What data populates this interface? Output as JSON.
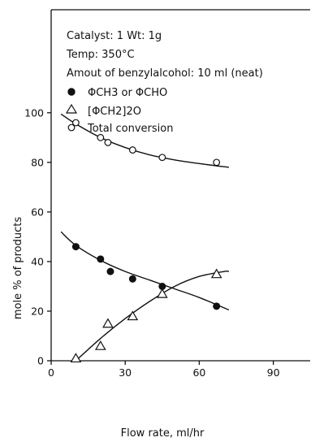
{
  "chart_data": {
    "type": "scatter",
    "title": "",
    "xlabel": "Flow rate, ml/hr",
    "ylabel": "mole % of products",
    "xlim": [
      0,
      105
    ],
    "ylim": [
      0,
      108
    ],
    "x_ticks": [
      0,
      30,
      60,
      90
    ],
    "y_ticks": [
      0,
      20,
      40,
      60,
      80,
      100
    ],
    "annotation_lines": [
      "Catalyst: 1   Wt: 1g",
      "Temp: 350°C",
      "Amout of benzylalcohol: 10 ml (neat)"
    ],
    "legend": [
      {
        "marker": "filled-circle",
        "text": "ΦCH3  or  ΦCHO"
      },
      {
        "marker": "open-triangle",
        "text": "[ΦCH2]2O"
      },
      {
        "marker": "open-circle",
        "text": "Total conversion"
      }
    ],
    "series": [
      {
        "name": "ΦCH3 or ΦCHO",
        "marker": "filled-circle",
        "x": [
          10,
          20,
          24,
          33,
          45,
          67
        ],
        "y": [
          46,
          41,
          36,
          33,
          30,
          22
        ],
        "curve": {
          "x": [
            4,
            10,
            20,
            30,
            40,
            50,
            60,
            72
          ],
          "y": [
            52,
            46.5,
            40.5,
            36,
            32.5,
            29,
            25.5,
            20.5
          ]
        }
      },
      {
        "name": "[ΦCH2]2O",
        "marker": "open-triangle",
        "x": [
          10,
          20,
          23,
          33,
          45,
          67
        ],
        "y": [
          1,
          6,
          15,
          18,
          27,
          35
        ],
        "curve": {
          "x": [
            10,
            20,
            30,
            40,
            50,
            60,
            70,
            72
          ],
          "y": [
            0,
            9,
            17,
            24,
            30,
            34,
            36,
            36
          ]
        }
      },
      {
        "name": "Total conversion",
        "marker": "open-circle",
        "x": [
          10,
          20,
          23,
          33,
          45,
          67
        ],
        "y": [
          96,
          90,
          88,
          85,
          82,
          80
        ],
        "curve": {
          "x": [
            4,
            10,
            20,
            30,
            40,
            50,
            60,
            72
          ],
          "y": [
            99.5,
            95.5,
            90,
            86,
            83,
            81,
            79.5,
            78
          ]
        }
      }
    ]
  }
}
